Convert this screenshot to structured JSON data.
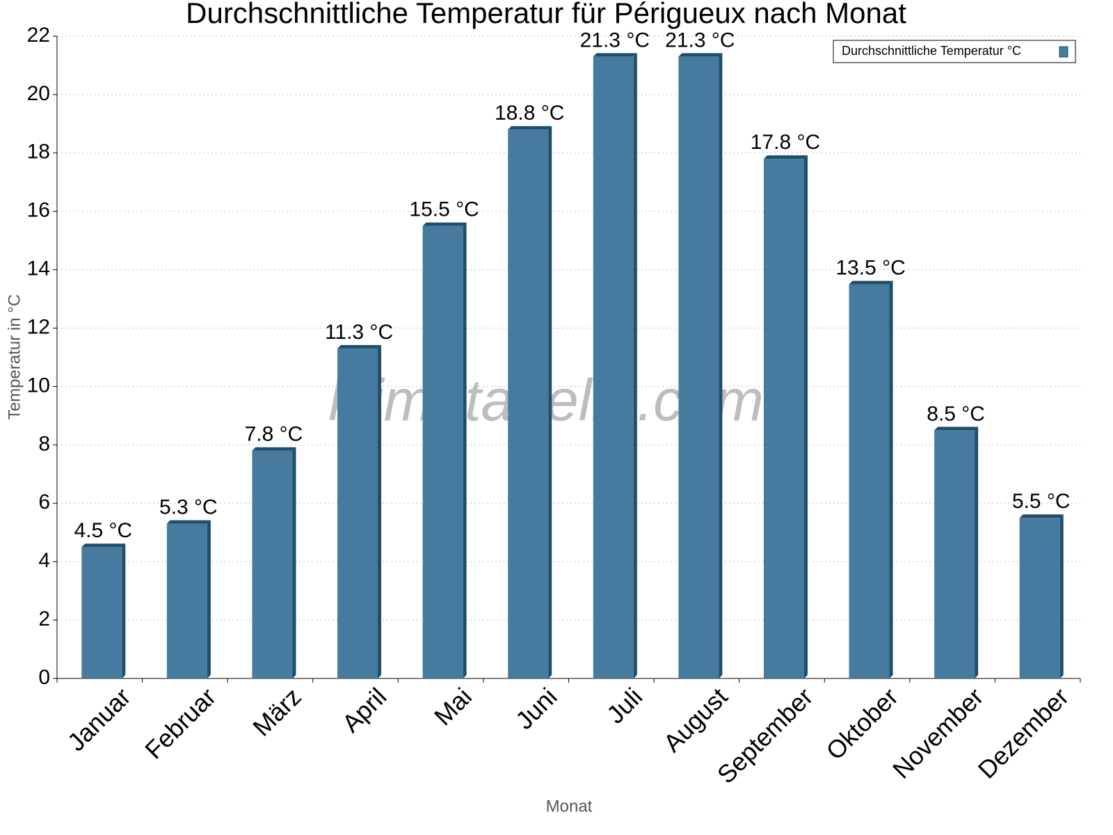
{
  "chart_data": {
    "type": "bar",
    "title": "Durchschnittliche Temperatur für Périgueux nach Monat",
    "x_label": "Monat",
    "y_label": "Temperatur in °C",
    "watermark": "klimatabelle.com",
    "categories": [
      "Januar",
      "Februar",
      "März",
      "April",
      "Mai",
      "Juni",
      "Juli",
      "August",
      "September",
      "Oktober",
      "November",
      "Dezember"
    ],
    "series": [
      {
        "name": "Durchschnittliche Temperatur °C",
        "color": "#467a9e",
        "values": [
          4.5,
          5.3,
          7.8,
          11.3,
          15.5,
          18.8,
          21.3,
          21.3,
          17.8,
          13.5,
          8.5,
          5.5
        ],
        "value_labels": [
          "4.5 °C",
          "5.3 °C",
          "7.8 °C",
          "11.3 °C",
          "15.5 °C",
          "18.8 °C",
          "21.3 °C",
          "21.3 °C",
          "17.8 °C",
          "13.5 °C",
          "8.5 °C",
          "5.5 °C"
        ]
      }
    ],
    "ylim": [
      0,
      22
    ],
    "yticks": [
      0,
      2,
      4,
      6,
      8,
      10,
      12,
      14,
      16,
      18,
      20,
      22
    ],
    "grid": true,
    "legend": "top-right"
  }
}
